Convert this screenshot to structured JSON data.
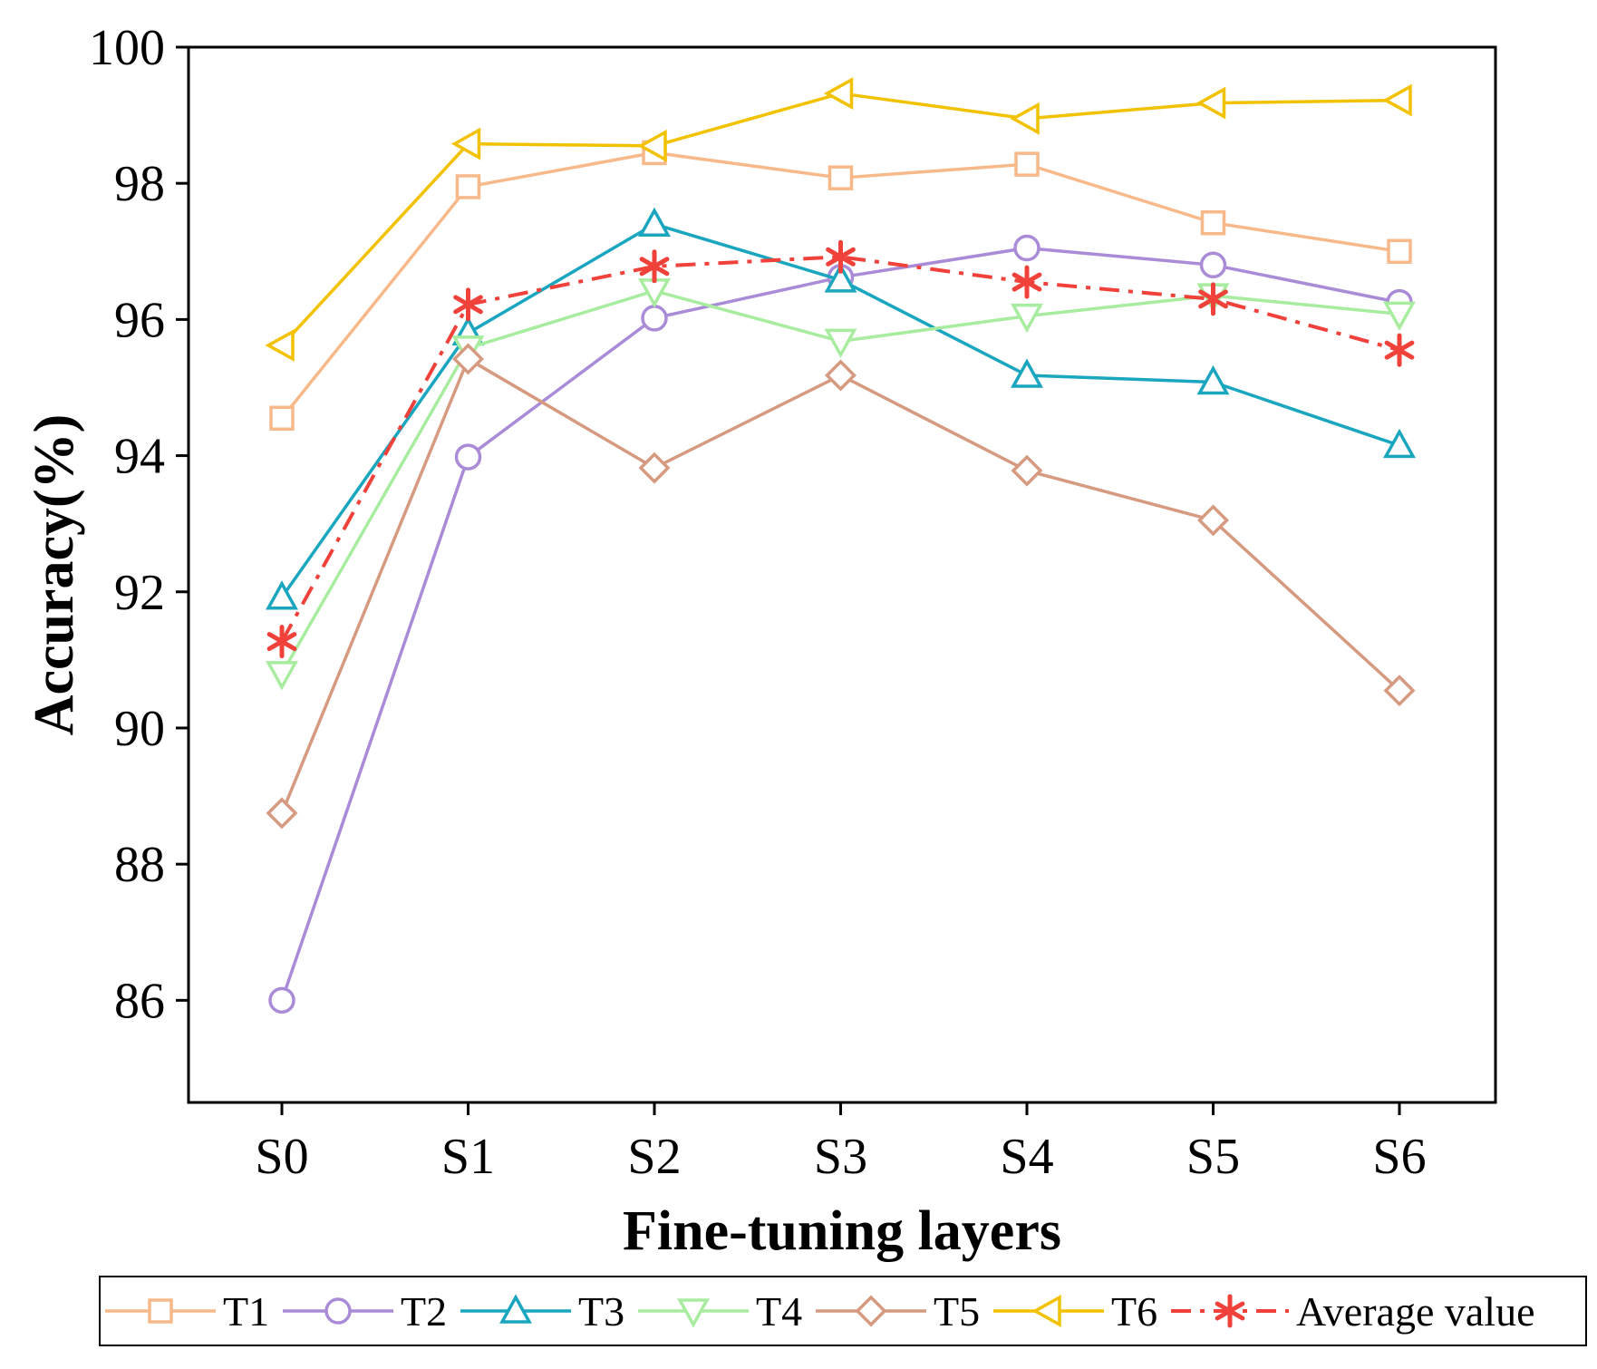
{
  "chart_data": {
    "type": "line",
    "title": "",
    "xlabel": "Fine-tuning layers",
    "ylabel": "Accuracy(%)",
    "categories": [
      "S0",
      "S1",
      "S2",
      "S3",
      "S4",
      "S5",
      "S6"
    ],
    "ylim": [
      84.5,
      100
    ],
    "yticks": [
      86,
      88,
      90,
      92,
      94,
      96,
      98,
      100
    ],
    "grid": false,
    "legend_position": "bottom",
    "series": [
      {
        "name": "T1",
        "color": "#f8b98a",
        "marker": "square",
        "dash": "solid",
        "values": [
          94.55,
          97.95,
          98.45,
          98.08,
          98.28,
          97.42,
          97.0
        ]
      },
      {
        "name": "T2",
        "color": "#a98bd8",
        "marker": "circle",
        "dash": "solid",
        "values": [
          86.0,
          93.98,
          96.02,
          96.62,
          97.05,
          96.8,
          96.25
        ]
      },
      {
        "name": "T3",
        "color": "#1aa6bf",
        "marker": "triangle-up",
        "dash": "solid",
        "values": [
          91.92,
          95.8,
          97.4,
          96.58,
          95.18,
          95.08,
          94.15
        ]
      },
      {
        "name": "T4",
        "color": "#a8eca0",
        "marker": "triangle-down",
        "dash": "solid",
        "values": [
          90.8,
          95.58,
          96.42,
          95.68,
          96.05,
          96.35,
          96.08
        ]
      },
      {
        "name": "T5",
        "color": "#d69a80",
        "marker": "diamond",
        "dash": "solid",
        "values": [
          88.75,
          95.42,
          93.82,
          95.18,
          93.78,
          93.05,
          90.55
        ]
      },
      {
        "name": "T6",
        "color": "#f2c200",
        "marker": "triangle-left",
        "dash": "solid",
        "values": [
          95.62,
          98.58,
          98.55,
          99.32,
          98.95,
          99.18,
          99.22
        ]
      },
      {
        "name": "Average value",
        "color": "#f0413a",
        "marker": "asterisk",
        "dash": "dashdot",
        "values": [
          91.27,
          96.22,
          96.78,
          96.92,
          96.55,
          96.3,
          95.55
        ]
      }
    ]
  }
}
